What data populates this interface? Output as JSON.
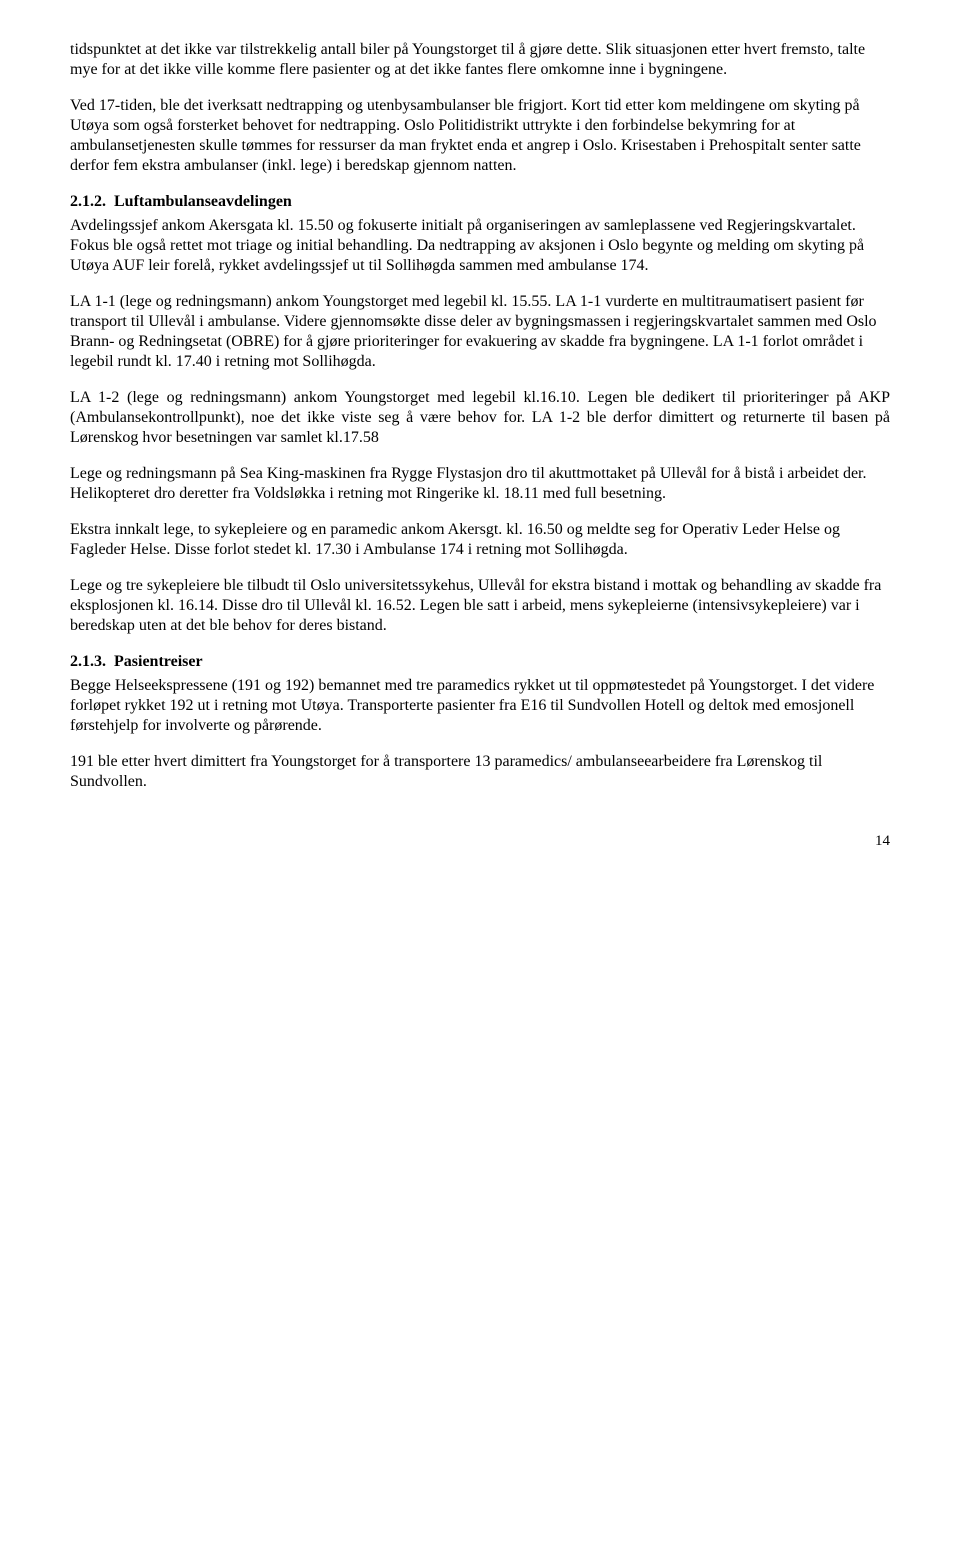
{
  "p1": "tidspunktet at det ikke var tilstrekkelig antall biler på Youngstorget til å gjøre dette. Slik situasjonen etter hvert fremsto, talte mye for at det ikke ville komme flere pasienter og at det ikke fantes flere omkomne inne i bygningene.",
  "p2": "Ved 17-tiden, ble det iverksatt nedtrapping og utenbysambulanser ble frigjort. Kort tid etter kom meldingene om skyting på Utøya som også forsterket behovet for nedtrapping. Oslo Politidistrikt uttrykte i den forbindelse bekymring for at ambulansetjenesten skulle tømmes for ressurser da man fryktet enda et angrep i Oslo. Krisestaben i Prehospitalt senter satte derfor fem ekstra ambulanser (inkl. lege) i beredskap gjennom natten.",
  "h212_num": "2.1.2.",
  "h212_title": "Luftambulanseavdelingen",
  "p3": "Avdelingssjef ankom Akersgata kl. 15.50 og fokuserte initialt på organiseringen av samleplassene ved Regjeringskvartalet. Fokus ble også rettet mot triage og initial behandling. Da nedtrapping av aksjonen i Oslo begynte og melding om skyting på Utøya AUF leir forelå, rykket avdelingssjef ut til Sollihøgda sammen med ambulanse 174.",
  "p4": "LA 1-1 (lege og redningsmann) ankom Youngstorget med legebil kl. 15.55. LA 1-1 vurderte en multitraumatisert pasient før transport til Ullevål i ambulanse. Videre gjennomsøkte disse deler av bygningsmassen i regjeringskvartalet sammen med Oslo Brann- og Redningsetat (OBRE) for å gjøre prioriteringer for evakuering av skadde fra bygningene. LA 1-1 forlot området i legebil rundt kl. 17.40 i retning mot Sollihøgda.",
  "p5": "LA 1-2 (lege og redningsmann) ankom Youngstorget med legebil kl.16.10. Legen ble dedikert til prioriteringer på AKP (Ambulansekontrollpunkt), noe det ikke viste seg å være behov for. LA 1-2 ble derfor dimittert og returnerte til basen på Lørenskog hvor besetningen var samlet kl.17.58",
  "p6": "Lege og redningsmann på Sea King-maskinen fra Rygge Flystasjon dro til akuttmottaket på Ullevål for å bistå i arbeidet der. Helikopteret dro deretter fra Voldsløkka i retning mot Ringerike kl. 18.11 med full besetning.",
  "p7": "Ekstra innkalt lege, to sykepleiere og en paramedic ankom Akersgt. kl. 16.50 og meldte seg for Operativ Leder Helse og Fagleder Helse. Disse forlot stedet kl. 17.30 i Ambulanse 174 i retning mot Sollihøgda.",
  "p8": "Lege og tre sykepleiere ble tilbudt til Oslo universitetssykehus, Ullevål for ekstra bistand i mottak og behandling av skadde fra eksplosjonen kl. 16.14. Disse dro til Ullevål kl. 16.52. Legen ble satt i arbeid, mens sykepleierne (intensivsykepleiere) var i beredskap uten at det ble behov for deres bistand.",
  "h213_num": "2.1.3.",
  "h213_title": "Pasientreiser",
  "p9": "Begge Helseekspressene (191 og 192) bemannet med tre paramedics rykket ut til oppmøtestedet på Youngstorget. I det videre forløpet rykket 192 ut i retning mot Utøya. Transporterte pasienter fra E16 til Sundvollen Hotell og deltok med emosjonell førstehjelp for involverte og pårørende.",
  "p10": "191 ble etter hvert dimittert fra Youngstorget for å transportere 13 paramedics/ ambulanseearbeidere fra Lørenskog til Sundvollen.",
  "page_number": "14"
}
